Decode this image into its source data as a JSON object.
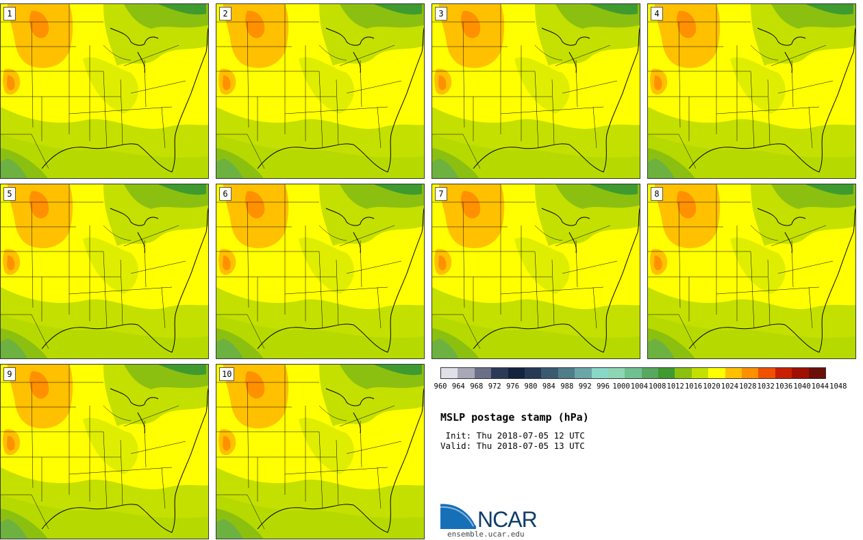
{
  "panels": [
    {
      "label": "1"
    },
    {
      "label": "2"
    },
    {
      "label": "3"
    },
    {
      "label": "4"
    },
    {
      "label": "5"
    },
    {
      "label": "6"
    },
    {
      "label": "7"
    },
    {
      "label": "8"
    },
    {
      "label": "9"
    },
    {
      "label": "10"
    }
  ],
  "colorbar": {
    "levels": [
      "960",
      "964",
      "968",
      "972",
      "976",
      "980",
      "984",
      "988",
      "992",
      "996",
      "1000",
      "1004",
      "1008",
      "1012",
      "1016",
      "1020",
      "1024",
      "1028",
      "1032",
      "1036",
      "1040",
      "1044",
      "1048"
    ],
    "colors": [
      "#e0e0e8",
      "#a8a8b8",
      "#6a7088",
      "#2c3a5a",
      "#14233e",
      "#263a58",
      "#3a5a70",
      "#4f7d8a",
      "#6aa6a8",
      "#88d8c8",
      "#8cd6b4",
      "#70c090",
      "#58a860",
      "#3f9a30",
      "#8cc010",
      "#c4e000",
      "#ffff00",
      "#ffc000",
      "#ff9000",
      "#f05000",
      "#c82000",
      "#a01000",
      "#6a1008"
    ]
  },
  "title": "MSLP postage stamp (hPa)",
  "init": " Init: Thu 2018-07-05 12 UTC",
  "valid": "Valid: Thu 2018-07-05 13 UTC",
  "logo": {
    "text": "NCAR",
    "url": "ensemble.ucar.edu"
  }
}
